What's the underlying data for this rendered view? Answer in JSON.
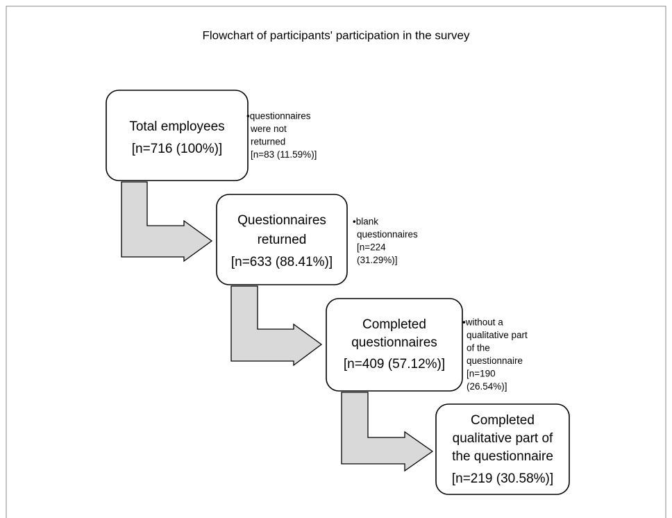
{
  "title": "Flowchart of participants' participation in the survey",
  "nodes": [
    {
      "lines": [
        "Total employees"
      ],
      "count": "[n=716 (100%)]"
    },
    {
      "lines": [
        "Questionnaires",
        "returned"
      ],
      "count": "[n=633 (88.41%)]"
    },
    {
      "lines": [
        "Completed",
        "questionnaires"
      ],
      "count": "[n=409 (57.12%)]"
    },
    {
      "lines": [
        "Completed",
        "qualitative part of",
        "the questionnaire"
      ],
      "count": "[n=219 (30.58%)]"
    }
  ],
  "notes": [
    {
      "lines": [
        "•questionnaires",
        "were not",
        "returned",
        "[n=83 (11.59%)]"
      ]
    },
    {
      "lines": [
        "•blank",
        "questionnaires",
        "[n=224",
        "(31.29%)]"
      ]
    },
    {
      "lines": [
        "•without a",
        "qualitative part",
        "of the",
        "questionnaire",
        "[n=190",
        "(26.54%)]"
      ]
    }
  ]
}
